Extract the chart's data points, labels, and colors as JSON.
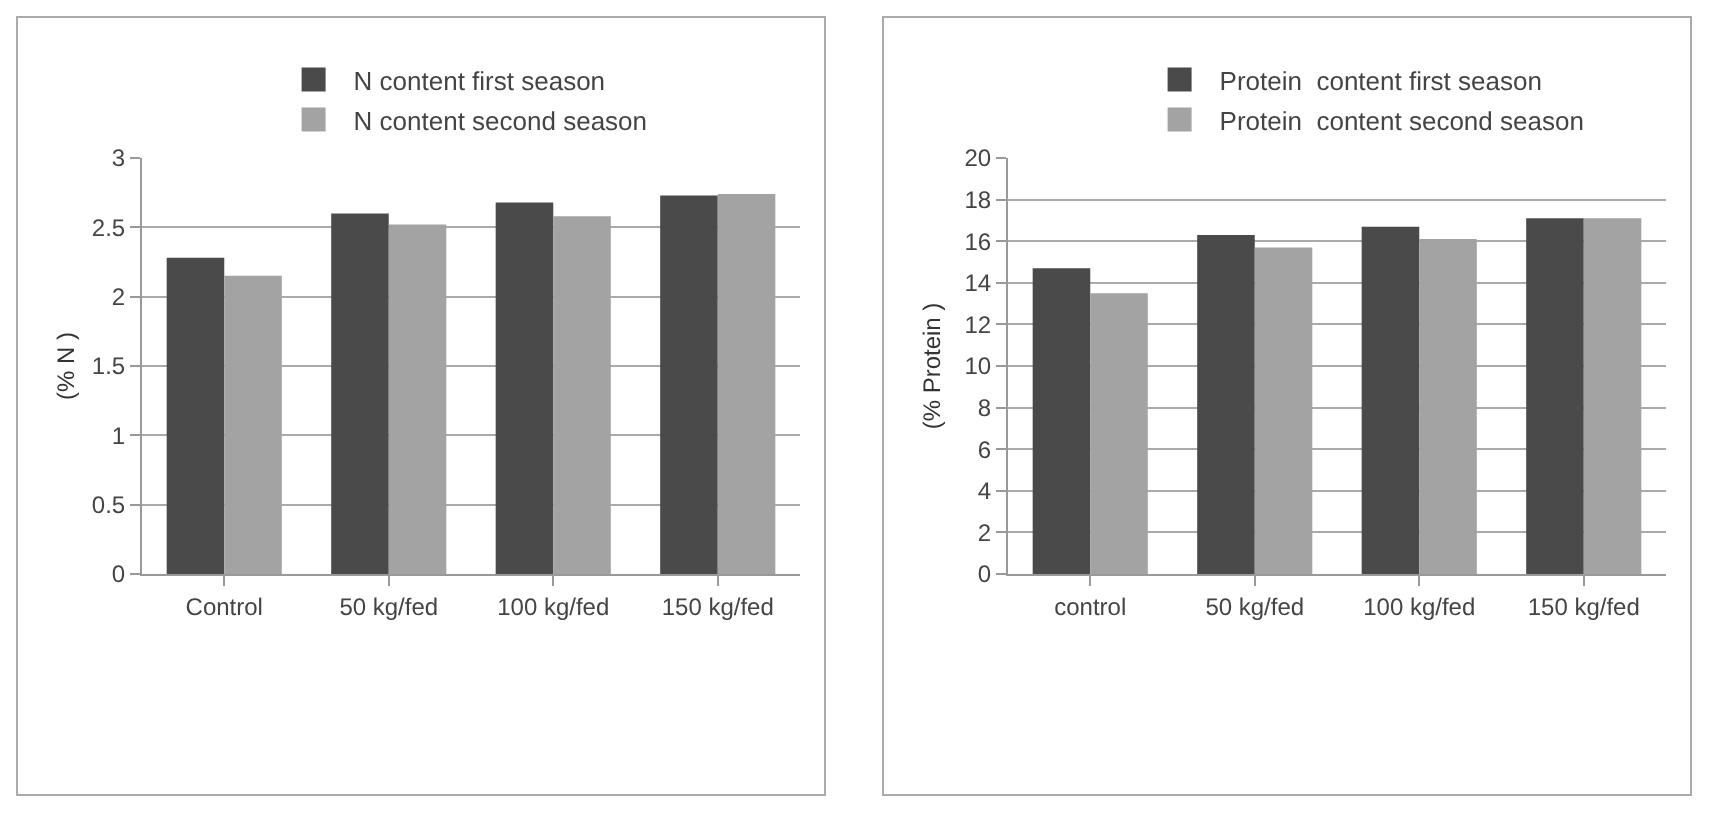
{
  "chart_data": [
    {
      "type": "bar",
      "ylabel": "(% N )",
      "categories": [
        "Control",
        "50 kg/fed",
        "100 kg/fed",
        "150 kg/fed"
      ],
      "series": [
        {
          "name": "N content first season",
          "color": "#4a4a4a",
          "values": [
            2.28,
            2.6,
            2.68,
            2.73
          ]
        },
        {
          "name": "N content second season",
          "color": "#a3a3a3",
          "values": [
            2.15,
            2.52,
            2.58,
            2.74
          ]
        }
      ],
      "ylim": [
        0,
        3
      ],
      "yticks": [
        0,
        0.5,
        1,
        1.5,
        2,
        2.5,
        3
      ],
      "grid": "y",
      "legend": "top"
    },
    {
      "type": "bar",
      "ylabel": "(% Protein )",
      "categories": [
        "control",
        "50 kg/fed",
        "100 kg/fed",
        "150 kg/fed"
      ],
      "series": [
        {
          "name": "Protein  content first season",
          "color": "#4a4a4a",
          "values": [
            14.7,
            16.3,
            16.7,
            17.1
          ]
        },
        {
          "name": "Protein  content second season",
          "color": "#a3a3a3",
          "values": [
            13.5,
            15.7,
            16.1,
            17.1
          ]
        }
      ],
      "ylim": [
        0,
        20
      ],
      "yticks": [
        0,
        2,
        4,
        6,
        8,
        10,
        12,
        14,
        16,
        18,
        20
      ],
      "grid": "y",
      "legend": "top"
    }
  ]
}
